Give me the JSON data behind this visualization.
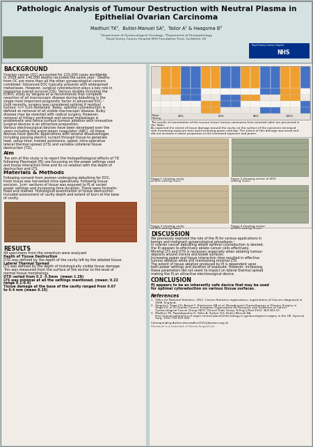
{
  "title_line1": "Pathologic Analysis of Tumour Destruction with Neutral Plasma in",
  "title_line2": "Epithelial Ovarian Carcinoma",
  "authors": "Madhuri TK¹,  Butler-Manuel SA¹,  Tailor A¹ & Haagsma B²",
  "affiliations_line1": "¹Department of Gynaecological Oncology, ²Department of Histopathology",
  "affiliations_line2": "Royal Surrey County Hospital NHS Foundation Trust, Guildford, UK",
  "bg_color": "#bfcfcf",
  "header_bg": "#d5e2e2",
  "body_bg": "#f2ece6",
  "col_gap_color": "#bfcfcf",
  "table_blue": "#4472c4",
  "table_orange": "#f0a030",
  "table_light": "#f5f0ea",
  "table_row1": "#ffffff",
  "table_row2": "#ede8e2",
  "background_title": "BACKGROUND",
  "background_text": [
    "Ovarian cancer (OC) accounted for 225,000 cases worldwide",
    "in 2008 with 140,000 deaths recorded the same year.¹ Deaths",
    "from OC are more than all the other gynaecological cancers",
    "combined.¹Advanced EOC typically presents with widespread",
    "metastases. However, surgical cytoreduction plays a key role in",
    "improving overall survival (OS). Various studies including the",
    "EORTC study by Vergote et al recommends that complete",
    "resection of all macroscopic disease during debulking is the",
    "single most important prognostic factor in advanced EOC.²",
    "Until recently, surgery was considered optimal if residual",
    "tumour </= 1cm remained. Today, optimal cytoreduction is",
    "defined as removal of all visible macroscopic disease. Bulky",
    "disease may be resected with radical surgery. However,",
    "removal of miliary peritoneal and serosal metastases is",
    "problematic and hence surface tumour ablation with innovative",
    "surgical devices is an attractive proposition.",
    "Various electrosurgical devices have been developed over the",
    "years including the argon beam coagulator (ABC). All these",
    "devices have specific applications with several disadvantages",
    "including passing electric current through tissue to generate",
    "heat, setup time, trained assistance, speed, intra-operative",
    "lateral thermal spread (LTS) and variable collateral tissue",
    "destruction (TD)."
  ],
  "aim_title": "Aim",
  "aim_text": [
    "The aim of this study is to report the histopathological effects of TD",
    "following PlasmaJet (PJ) use focussing on the power settings used",
    "and tissue interaction time and its co-relation with the depth of",
    "destruction and LTS."
  ],
  "methods_title": "Materials & Methods",
  "methods_text": [
    "Following consent from women undergoing debulking for EOC,",
    "fresh tissue was harvested intra-operatively. Following tissue",
    "excision, 1cm² sections of tissue was exposed to PJ at varied",
    "power settings and increasing time duration. These were formalin-",
    "fixed and stained. Histological examination of tissue destruction",
    "included assessment of cavity depth and extent of burn at the base",
    "of cavity."
  ],
  "results_title": "RESULTS",
  "results_text": [
    [
      "48 specimens from the omentum were analysed",
      false
    ],
    [
      "Depth of Tissue Destruction",
      true
    ],
    [
      "DTD was defined by the depth of the cavity left by the ablated tissue.",
      false
    ],
    [
      "Lateral Thermal Spread",
      true
    ],
    [
      "LTS was defined by the depth of histologically visible tissue damage.",
      false
    ],
    [
      "This was measured from the surface of the eschar to the level of",
      false
    ],
    [
      "normal tissue morphology.",
      false
    ],
    [
      "DTD varied from 0.2 -3.5mm  (mean 1.29)",
      true
    ],
    [
      "LTS was minimal at all the settings mentioned. (mean: 0.22",
      true
    ],
    [
      "range 0.1-0.4)",
      true
    ],
    [
      "Tissue damage at the base of the cavity ranged from 0.07",
      true
    ],
    [
      "to 0.4 mm (mean 0.15)",
      true
    ]
  ],
  "table_caption_lines": [
    "The results of examination of the tumour tissue (serous carcinoma from omental cake) are presented in",
    "the Table.",
    "As expected the extent of tissue damage around the cavity on the surface of the specimen increased",
    "with increasing exposure time and increasing power settings. The extent of this damage was small and",
    "did not increase in direct proportion to the increased exposure and power."
  ],
  "fig_captions": [
    "Figure 1 showing cavity\nat 40% setting (1sec)",
    "Figure 2 showing eschar at 40%\nsetting (1sec)",
    "Figure 3 showing cavity\nat 40% setting (5sec)",
    "Figure 4 showing eschar\nat 40% setting (5 sec)"
  ],
  "discussion_title": "DISCUSSION",
  "discussion_text": [
    "We previously explored the role of the PJ for various applications in",
    "benign and malignant gynaecological procedures.³",
    "In ovarian cancer debulking where optimal cytoreduction is desired,",
    "the PJ appears to effectively ablate cancer cells effectively.",
    "Minimal LTS and DTD is necessary especially when ablating tumour",
    "deposits around viscera and bowel surfaces.",
    "Increasing power and tissue interaction time resulted in effective",
    "tumour ablation while still maintaining minimal LTD.",
    "The extent of tissue ablation produced by PJ is dependent upon",
    "both power settings and duration of exposure. However, increasing",
    "these parameters did not seem to impact on lateral thermal spread",
    "making the PJ an attractive electrosurgical device."
  ],
  "conclusion_title": "CONCLUSION",
  "conclusion_text": [
    "PJ appears to be an inherently safe device that may be used",
    "for optimal cytoreduction on various tissue surfaces."
  ],
  "references_title": "References",
  "references_text": [
    "1.  Office for National Statistics. 2011. Cancer Statistics registrations: registrations of Cancers diagnosed in",
    "     2008. England.",
    "2.  Vergote I, Trope CG, Amant F, Kristensen GB et al. Neoadjuvant Chemotherapy or Primary Surgery in",
    "     Stage IIIC or IV Ovarian Cancer. European Organisation for Research and Treatment of Cancer",
    "     Gynaecological Cancer Group (NCIC Clinical Trials Group. N Engl J Med 2010; 363:943-53.",
    "3.  Madhuri TK, Papadopoulos D, Tailor A, Sutton CJG, Butler-Manuel SA.",
    "     First clinical experience of argon neutral plasma/electrology in gynaecological surgery in the UK. Gynecol",
    "     Surg. 2010 7(4):423-426."
  ],
  "corresponding": "Corresponding Author:docmadhuri231@doctors.org.uk",
  "trademark": "Plasma Jet is a trademark of Plasma Surgical Ltd"
}
